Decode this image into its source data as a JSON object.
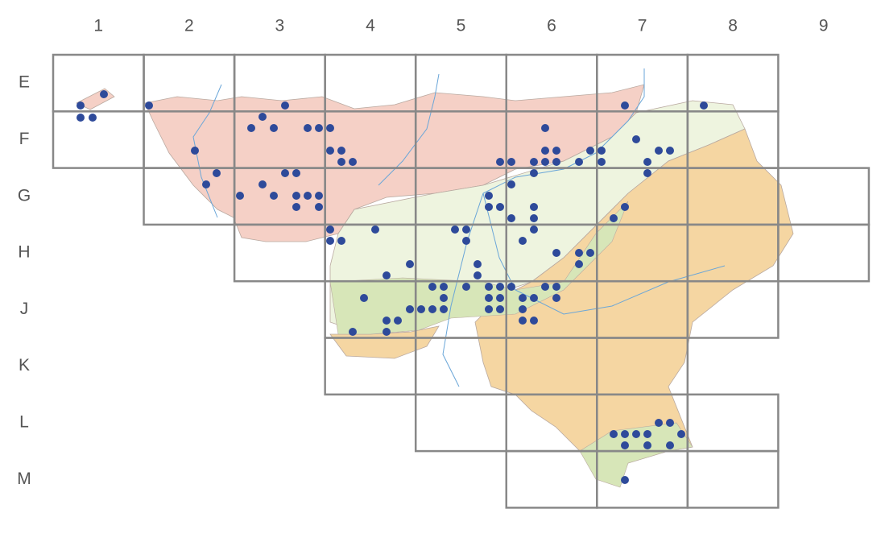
{
  "columns": [
    "1",
    "2",
    "3",
    "4",
    "5",
    "6",
    "7",
    "8",
    "9"
  ],
  "rows": [
    "E",
    "F",
    "G",
    "H",
    "J",
    "K",
    "L",
    "M"
  ]
}
